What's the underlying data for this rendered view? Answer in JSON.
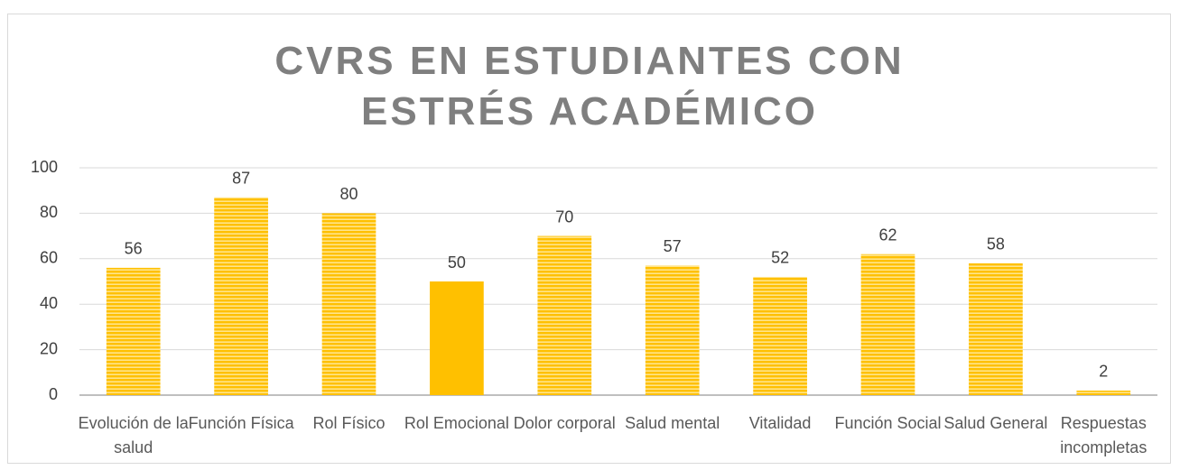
{
  "chart_data": {
    "type": "bar",
    "title": "CVRS EN ESTUDIANTES CON ESTRÉS ACADÉMICO",
    "categories": [
      "Evolución de la salud",
      "Función Física",
      "Rol Físico",
      "Rol Emocional",
      "Dolor corporal",
      "Salud mental",
      "Vitalidad",
      "Función Social",
      "Salud General",
      "Respuestas incompletas"
    ],
    "values": [
      56,
      87,
      80,
      50,
      70,
      57,
      52,
      62,
      58,
      2
    ],
    "fill_styles": [
      "striped",
      "striped",
      "striped",
      "solid",
      "striped",
      "striped",
      "striped",
      "striped",
      "striped",
      "striped"
    ],
    "color": "#FFC000",
    "ylim": [
      0,
      100
    ],
    "yticks": [
      0,
      20,
      40,
      60,
      80,
      100
    ],
    "grid": true
  }
}
